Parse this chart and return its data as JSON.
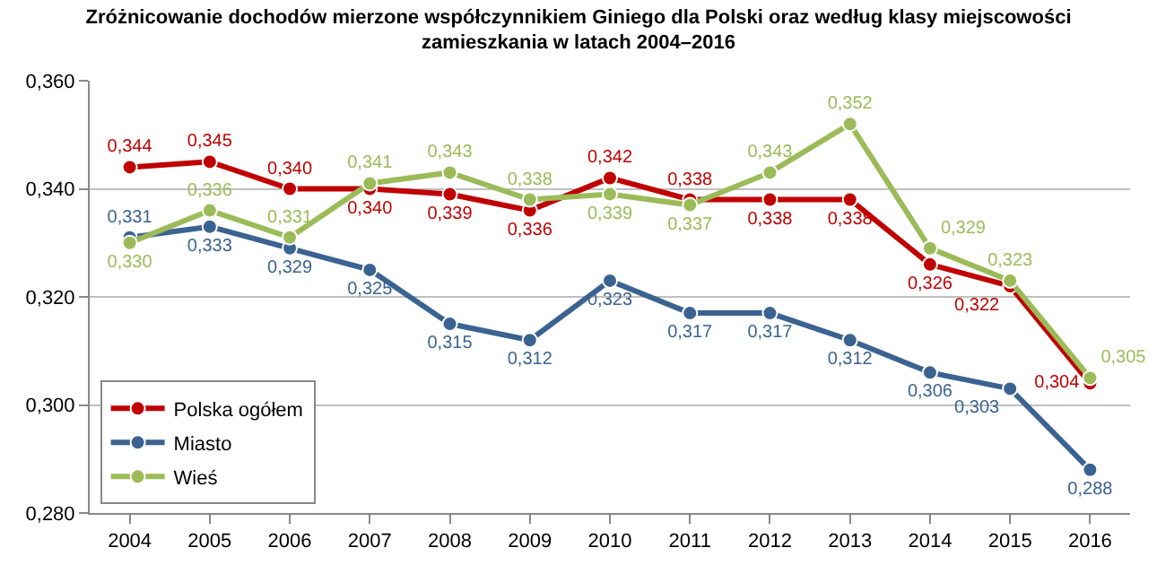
{
  "chart_data": {
    "type": "line",
    "title": "Zróżnicowanie dochodów mierzone współczynnikiem Giniego dla Polski oraz według klasy miejscowości\nzamieszkania w latach 2004–2016",
    "categories": [
      "2004",
      "2005",
      "2006",
      "2007",
      "2008",
      "2009",
      "2010",
      "2011",
      "2012",
      "2013",
      "2014",
      "2015",
      "2016"
    ],
    "series": [
      {
        "name": "Polska ogółem",
        "color": "#c00000",
        "values": [
          0.344,
          0.345,
          0.34,
          0.34,
          0.339,
          0.336,
          0.342,
          0.338,
          0.338,
          0.338,
          0.326,
          0.322,
          0.304
        ],
        "value_labels": [
          "0,344",
          "0,345",
          "0,340",
          "0,340",
          "0,339",
          "0,336",
          "0,342",
          "0,338",
          "0,338",
          "0,338",
          "0,326",
          "0,322",
          "0,304"
        ]
      },
      {
        "name": "Miasto",
        "color": "#3b6391",
        "values": [
          0.331,
          0.333,
          0.329,
          0.325,
          0.315,
          0.312,
          0.323,
          0.317,
          0.317,
          0.312,
          0.306,
          0.303,
          0.288
        ],
        "value_labels": [
          "0,331",
          "0,333",
          "0,329",
          "0,325",
          "0,315",
          "0,312",
          "0,323",
          "0,317",
          "0,317",
          "0,312",
          "0,306",
          "0,303",
          "0,288"
        ]
      },
      {
        "name": "Wieś",
        "color": "#9bbb59",
        "values": [
          0.33,
          0.336,
          0.331,
          0.341,
          0.343,
          0.338,
          0.339,
          0.337,
          0.343,
          0.352,
          0.329,
          0.323,
          0.305
        ],
        "value_labels": [
          "0,330",
          "0,336",
          "0,331",
          "0,341",
          "0,343",
          "0,338",
          "0,339",
          "0,337",
          "0,343",
          "0,352",
          "0,329",
          "0,323",
          "0,305"
        ]
      }
    ],
    "ylim": [
      0.28,
      0.36
    ],
    "yticks": [
      {
        "value": 0.28,
        "label": "0,280"
      },
      {
        "value": 0.3,
        "label": "0,300"
      },
      {
        "value": 0.32,
        "label": "0,320"
      },
      {
        "value": 0.34,
        "label": "0,340"
      },
      {
        "value": 0.36,
        "label": "0,360"
      }
    ],
    "grid": "y",
    "legend": "bottom left",
    "marker": "circle",
    "line_style": "solid"
  }
}
